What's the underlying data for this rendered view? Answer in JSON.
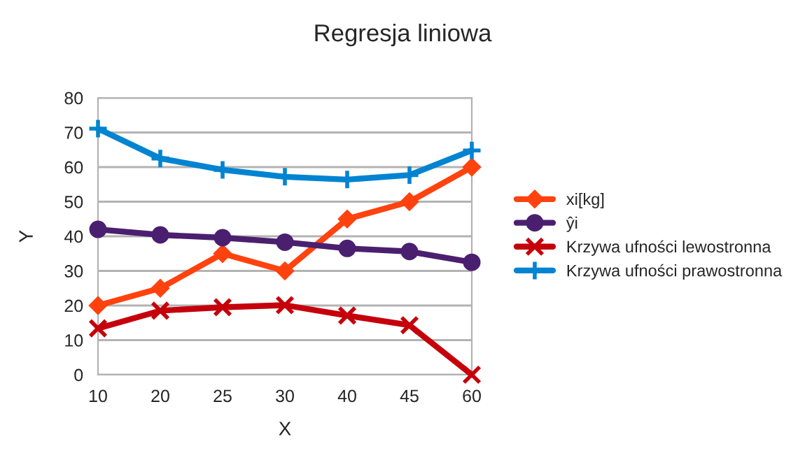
{
  "chart_data": {
    "type": "line",
    "title": "Regresja liniowa",
    "xlabel": "X",
    "ylabel": "Y",
    "categories": [
      "10",
      "20",
      "25",
      "30",
      "40",
      "45",
      "60"
    ],
    "series": [
      {
        "name": "xi[kg]",
        "color": "#ff420e",
        "marker": "diamond",
        "values": [
          20,
          25,
          35,
          30,
          45,
          50,
          60
        ]
      },
      {
        "name": "ŷi",
        "color": "#4b1f6f",
        "marker": "circle",
        "values": [
          42.0,
          40.4,
          39.6,
          38.3,
          36.5,
          35.6,
          32.5
        ]
      },
      {
        "name": "Krzywa ufności lewostronna",
        "color": "#c5000b",
        "marker": "cross",
        "values": [
          13.4,
          18.5,
          19.5,
          20.1,
          17.1,
          14.3,
          0
        ]
      },
      {
        "name": "Krzywa ufności prawostronna",
        "color": "#0084d1",
        "marker": "plus",
        "values": [
          71.1,
          62.5,
          59.2,
          57.2,
          56.4,
          57.7,
          64.8
        ]
      }
    ],
    "ylim": [
      0,
      80
    ],
    "yticks": [
      0,
      10,
      20,
      30,
      40,
      50,
      60,
      70,
      80
    ],
    "grid": "y",
    "legend": "right",
    "line_style": "solid"
  }
}
